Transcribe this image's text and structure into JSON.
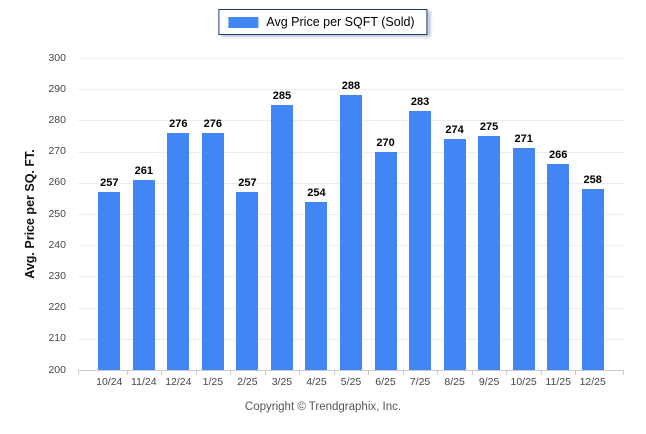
{
  "legend": {
    "label": "Avg Price per SQFT (Sold)"
  },
  "chart_data": {
    "type": "bar",
    "categories": [
      "10/24",
      "11/24",
      "12/24",
      "1/25",
      "2/25",
      "3/25",
      "4/25",
      "5/25",
      "6/25",
      "7/25",
      "8/25",
      "9/25",
      "10/25",
      "11/25",
      "12/25"
    ],
    "values": [
      257,
      261,
      276,
      276,
      257,
      285,
      254,
      288,
      270,
      283,
      274,
      275,
      271,
      266,
      258
    ],
    "title": "",
    "xlabel": "",
    "ylabel": "Avg. Price per SQ. FT.",
    "ylim": [
      200,
      300
    ],
    "ytick_step": 10,
    "grid": "horizontal",
    "legend_entries": [
      "Avg Price per SQFT (Sold)"
    ],
    "legend_position": "top-center",
    "value_labels": true
  },
  "footer": {
    "copyright": "Copyright © Trendgraphix, Inc."
  },
  "colors": {
    "bar": "#4285f4",
    "gridline": "#ededed",
    "baseline": "#cccccc",
    "axis_text": "#454545",
    "value_label": "#000000",
    "legend_border": "#1e3a6e",
    "copyright_text": "#565656"
  }
}
